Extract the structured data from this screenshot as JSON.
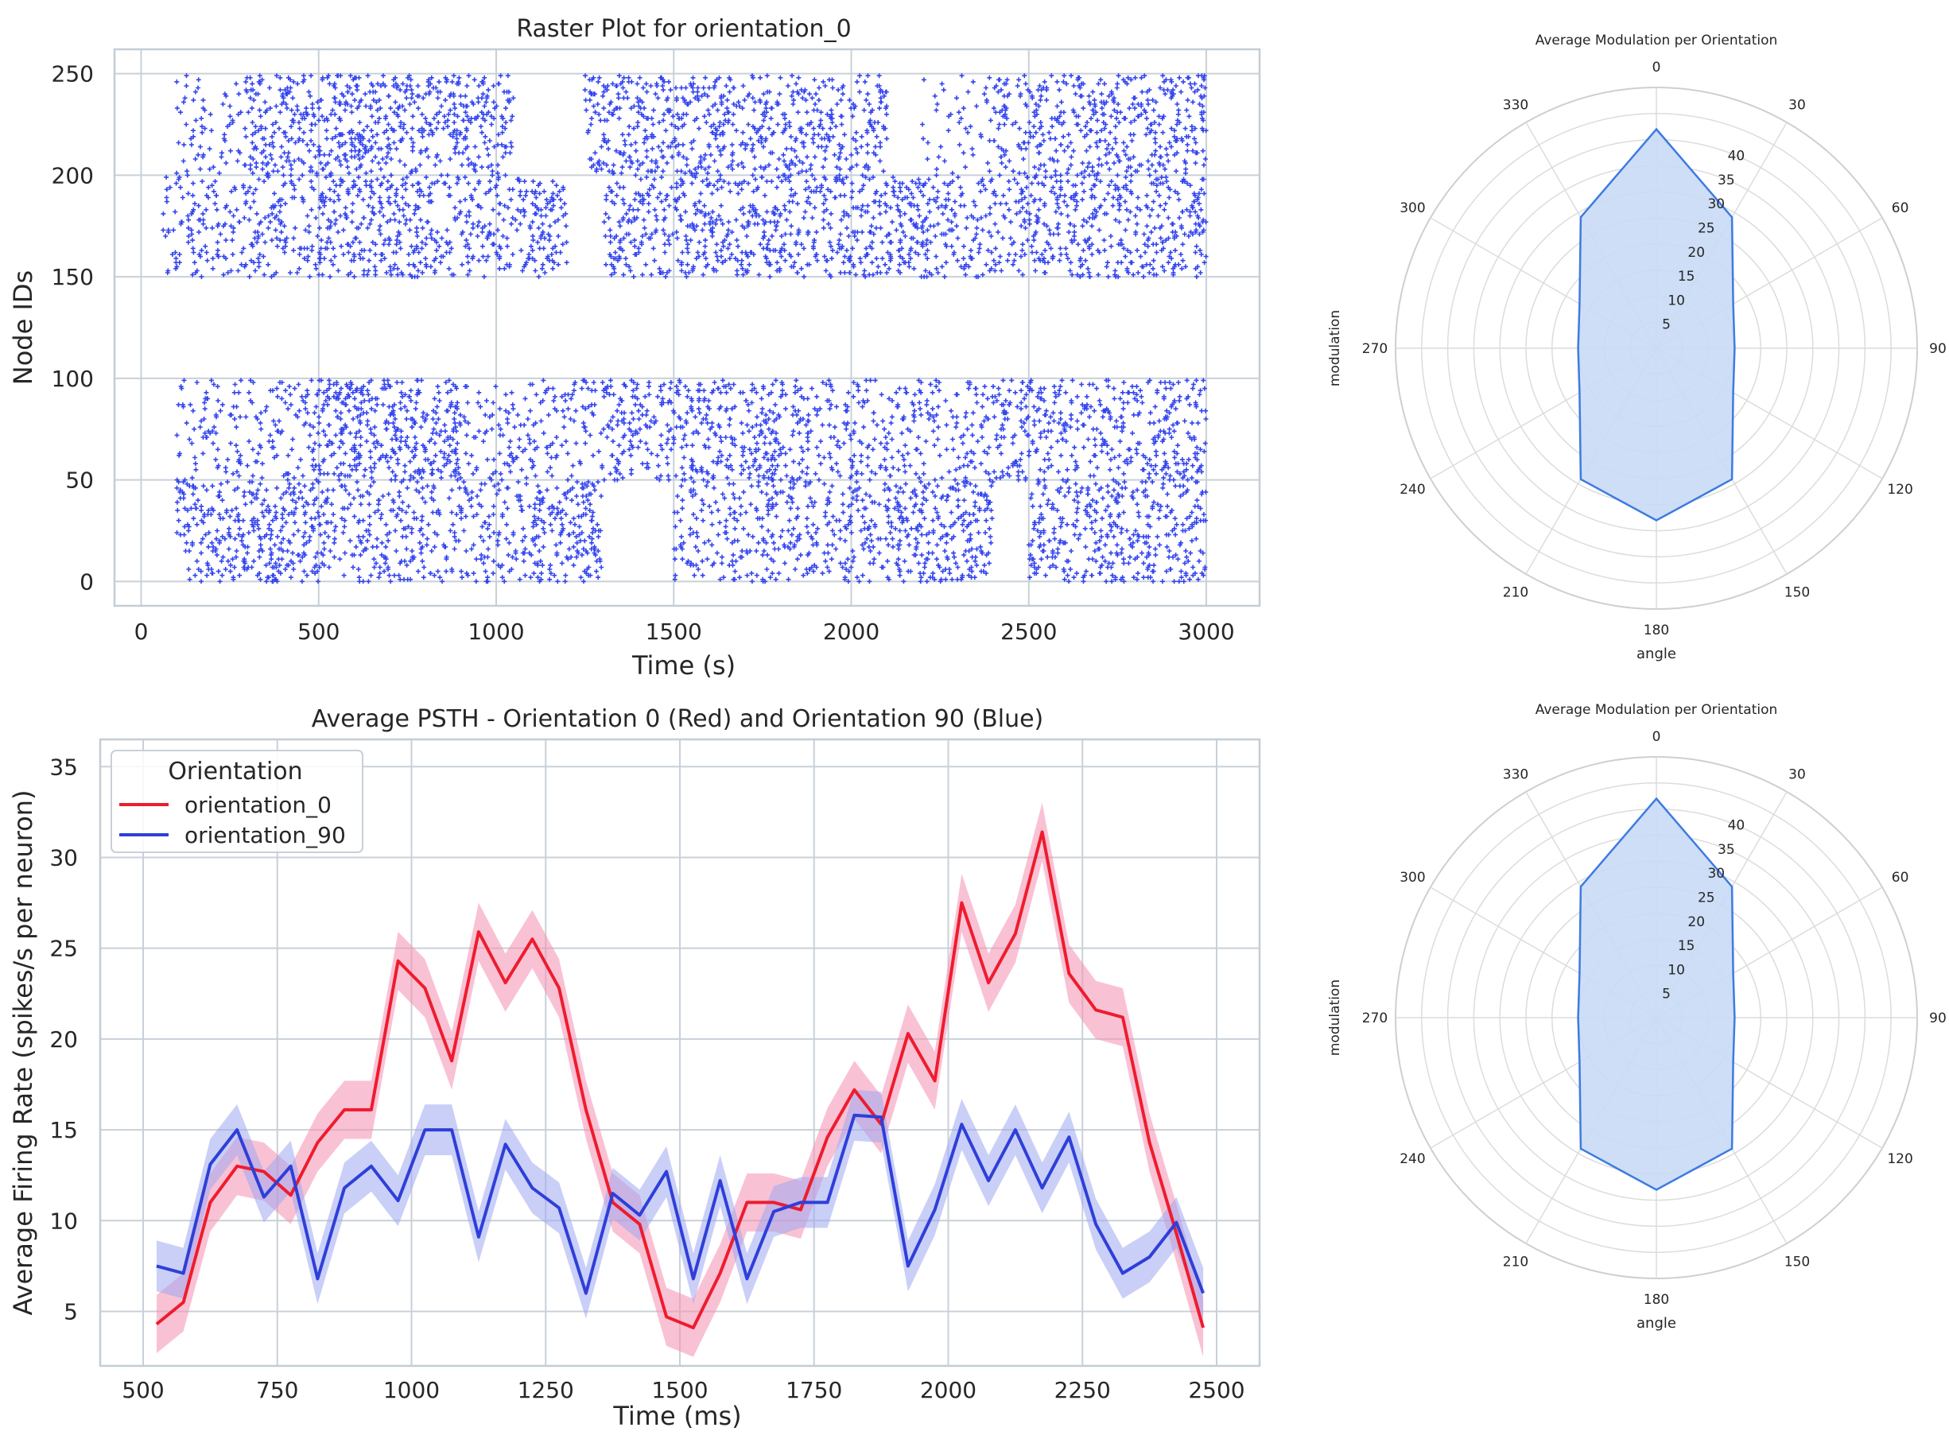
{
  "chart_data": [
    {
      "type": "scatter",
      "title": "Raster Plot for orientation_0",
      "xlabel": "Time (s)",
      "ylabel": "Node IDs",
      "xlim": [
        -75,
        3150
      ],
      "ylim": [
        -12,
        262
      ],
      "xticks": [
        0,
        500,
        1000,
        1500,
        2000,
        2500,
        3000
      ],
      "yticks": [
        0,
        50,
        100,
        150,
        200,
        250
      ],
      "grid": true,
      "color": "#3344ee",
      "marker": "+",
      "node_groups": [
        {
          "ids": [
            0,
            50
          ],
          "activity": [
            [
              100,
              500,
              0.7
            ],
            [
              500,
              1100,
              0.45
            ],
            [
              1100,
              1300,
              0.7
            ],
            [
              1500,
              2100,
              0.45
            ],
            [
              2100,
              2400,
              0.7
            ],
            [
              2500,
              3000,
              0.6
            ]
          ]
        },
        {
          "ids": [
            50,
            100
          ],
          "activity": [
            [
              100,
              500,
              0.35
            ],
            [
              500,
              900,
              0.75
            ],
            [
              900,
              1300,
              0.35
            ],
            [
              1300,
              1800,
              0.6
            ],
            [
              1800,
              2400,
              0.4
            ],
            [
              2400,
              3000,
              0.55
            ]
          ]
        },
        {
          "ids": [
            150,
            200
          ],
          "activity": [
            [
              60,
              500,
              0.45
            ],
            [
              500,
              1200,
              0.6
            ],
            [
              1300,
              2200,
              0.6
            ],
            [
              2200,
              2500,
              0.5
            ],
            [
              2500,
              3000,
              0.6
            ]
          ]
        },
        {
          "ids": [
            200,
            250
          ],
          "activity": [
            [
              100,
              300,
              0.3
            ],
            [
              300,
              1050,
              0.65
            ],
            [
              1200,
              1250,
              0.1
            ],
            [
              1250,
              2100,
              0.6
            ],
            [
              2200,
              2400,
              0.15
            ],
            [
              2400,
              3000,
              0.6
            ]
          ]
        }
      ]
    },
    {
      "type": "line",
      "title": "Average PSTH - Orientation 0 (Red) and Orientation 90 (Blue)",
      "xlabel": "Time (ms)",
      "ylabel": "Average Firing Rate (spikes/s per neuron)",
      "xlim": [
        420,
        2580
      ],
      "ylim": [
        2,
        36.5
      ],
      "xticks": [
        500,
        750,
        1000,
        1250,
        1500,
        1750,
        2000,
        2250,
        2500
      ],
      "yticks": [
        5,
        10,
        15,
        20,
        25,
        30,
        35
      ],
      "grid": true,
      "legend": {
        "title": "Orientation",
        "position": "top-left"
      },
      "x": [
        525,
        575,
        625,
        675,
        725,
        775,
        825,
        875,
        925,
        975,
        1025,
        1075,
        1125,
        1175,
        1225,
        1275,
        1325,
        1375,
        1425,
        1475,
        1525,
        1575,
        1625,
        1675,
        1725,
        1775,
        1825,
        1875,
        1925,
        1975,
        2025,
        2075,
        2125,
        2175,
        2225,
        2275,
        2325,
        2375,
        2425,
        2475
      ],
      "series": [
        {
          "name": "orientation_0",
          "color": "#ee1c2e",
          "band_color": "#f48fb1",
          "values": [
            4.3,
            5.5,
            11.0,
            13.0,
            12.7,
            11.4,
            14.3,
            16.1,
            16.1,
            24.3,
            22.8,
            18.8,
            25.9,
            23.1,
            25.5,
            22.8,
            16.1,
            11.0,
            9.8,
            4.7,
            4.1,
            7.1,
            11.0,
            11.0,
            10.6,
            14.6,
            17.2,
            15.3,
            20.3,
            17.7,
            27.5,
            23.1,
            25.8,
            31.4,
            23.6,
            21.6,
            21.2,
            14.3,
            9.3,
            4.1
          ],
          "band": 1.6
        },
        {
          "name": "orientation_90",
          "color": "#2e3fd9",
          "band_color": "#9ea7f0",
          "values": [
            7.5,
            7.1,
            13.1,
            15.0,
            11.3,
            13.0,
            6.8,
            11.8,
            13.0,
            11.1,
            15.0,
            15.0,
            9.1,
            14.2,
            11.8,
            10.7,
            6.0,
            11.5,
            10.3,
            12.7,
            6.8,
            12.2,
            6.8,
            10.5,
            11.0,
            11.0,
            15.8,
            15.7,
            7.5,
            10.6,
            15.3,
            12.2,
            15.0,
            11.8,
            14.6,
            9.8,
            7.1,
            8.0,
            9.9,
            6.0
          ],
          "band": 1.4
        }
      ]
    },
    {
      "type": "radar",
      "title": "Average Modulation per Orientation",
      "xlabel": "angle",
      "ylabel": "modulation",
      "angles": [
        0,
        30,
        60,
        90,
        120,
        150,
        180,
        210,
        240,
        270,
        300,
        330
      ],
      "values": [
        42,
        29,
        17,
        15,
        17,
        29,
        33,
        29,
        17,
        15,
        17,
        29
      ],
      "rlim": [
        0,
        50
      ],
      "rticks": [
        5,
        10,
        15,
        20,
        25,
        30,
        35,
        40
      ],
      "color": "#3d7be0",
      "fill": "#c8daf5"
    },
    {
      "type": "radar",
      "title": "Average Modulation per Orientation",
      "xlabel": "angle",
      "ylabel": "modulation",
      "angles": [
        0,
        30,
        60,
        90,
        120,
        150,
        180,
        210,
        240,
        270,
        300,
        330
      ],
      "values": [
        42,
        29,
        17,
        15,
        17,
        29,
        33,
        29,
        17,
        15,
        17,
        29
      ],
      "rlim": [
        0,
        50
      ],
      "rticks": [
        5,
        10,
        15,
        20,
        25,
        30,
        35,
        40
      ],
      "color": "#3d7be0",
      "fill": "#c8daf5"
    }
  ]
}
